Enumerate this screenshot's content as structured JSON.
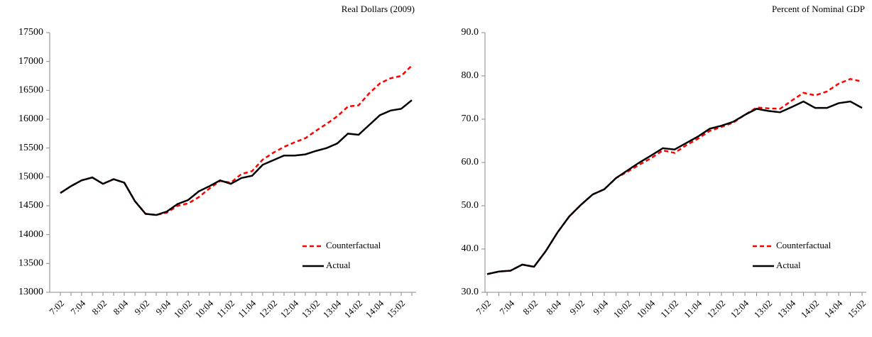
{
  "chart_data": [
    {
      "type": "line",
      "title": "Real Dollars (2009)",
      "categories": [
        "7:02",
        null,
        "7:04",
        null,
        "8:02",
        null,
        "8:04",
        null,
        "9:02",
        null,
        "9:04",
        null,
        "10:02",
        null,
        "10:04",
        null,
        "11:02",
        null,
        "11:04",
        null,
        "12:02",
        null,
        "12:04",
        null,
        "13:02",
        null,
        "13:04",
        null,
        "14:02",
        null,
        "14:04",
        null,
        "15:02",
        null
      ],
      "series": [
        {
          "name": "Counterfactual",
          "color": "#ff0000",
          "dash": true,
          "values": [
            14720,
            14840,
            14940,
            14990,
            14880,
            14960,
            14900,
            14580,
            14360,
            14340,
            14380,
            14500,
            14540,
            14650,
            14800,
            14930,
            14900,
            15050,
            15100,
            15300,
            15420,
            15520,
            15600,
            15670,
            15800,
            15920,
            16050,
            16220,
            16240,
            16450,
            16620,
            16710,
            16750,
            16930
          ]
        },
        {
          "name": "Actual",
          "color": "#000000",
          "dash": false,
          "values": [
            14720,
            14840,
            14940,
            14990,
            14880,
            14960,
            14900,
            14580,
            14360,
            14340,
            14400,
            14530,
            14600,
            14750,
            14840,
            14940,
            14880,
            14980,
            15020,
            15210,
            15290,
            15370,
            15370,
            15390,
            15450,
            15500,
            15580,
            15750,
            15730,
            15900,
            16070,
            16150,
            16180,
            16330
          ]
        }
      ],
      "ylim": [
        13000,
        17500
      ],
      "yticks": [
        13000,
        13500,
        14000,
        14500,
        15000,
        15500,
        16000,
        16500,
        17000,
        17500
      ],
      "legend": "lower right"
    },
    {
      "type": "line",
      "title": "Percent of Nominal GDP",
      "categories": [
        "7:02",
        null,
        "7:04",
        null,
        "8:02",
        null,
        "8:04",
        null,
        "9:02",
        null,
        "9:04",
        null,
        "10:02",
        null,
        "10:04",
        null,
        "11:02",
        null,
        "11:04",
        null,
        "12:02",
        null,
        "12:04",
        null,
        "13:02",
        null,
        "13:04",
        null,
        "14:02",
        null,
        "14:04",
        null,
        "15:02"
      ],
      "series": [
        {
          "name": "Counterfactual",
          "color": "#ff0000",
          "dash": true,
          "values": [
            34.2,
            34.8,
            35.0,
            36.4,
            35.9,
            39.5,
            43.8,
            47.5,
            50.2,
            52.6,
            53.8,
            56.4,
            57.9,
            59.5,
            61.0,
            62.8,
            62.2,
            64.0,
            65.5,
            67.3,
            68.2,
            69.2,
            71.0,
            72.7,
            72.5,
            72.4,
            74.3,
            76.1,
            75.5,
            76.4,
            78.2,
            79.3,
            78.7
          ]
        },
        {
          "name": "Actual",
          "color": "#000000",
          "dash": false,
          "values": [
            34.2,
            34.8,
            35.0,
            36.4,
            35.9,
            39.5,
            43.8,
            47.5,
            50.2,
            52.6,
            53.8,
            56.4,
            58.2,
            60.0,
            61.6,
            63.3,
            63.0,
            64.5,
            66.0,
            67.8,
            68.5,
            69.4,
            71.0,
            72.4,
            71.9,
            71.6,
            72.8,
            74.1,
            72.6,
            72.6,
            73.7,
            74.1,
            72.6
          ]
        }
      ],
      "ylim": [
        30,
        90
      ],
      "yticks": [
        {
          "value": 30,
          "label": "30.0"
        },
        {
          "value": 40,
          "label": "40.0"
        },
        {
          "value": 50,
          "label": "50.0"
        },
        {
          "value": 60,
          "label": "60.0"
        },
        {
          "value": 70,
          "label": "70.0"
        },
        {
          "value": 80,
          "label": "80.0"
        },
        {
          "value": 90,
          "label": "90.0"
        }
      ],
      "legend": "lower right"
    }
  ]
}
